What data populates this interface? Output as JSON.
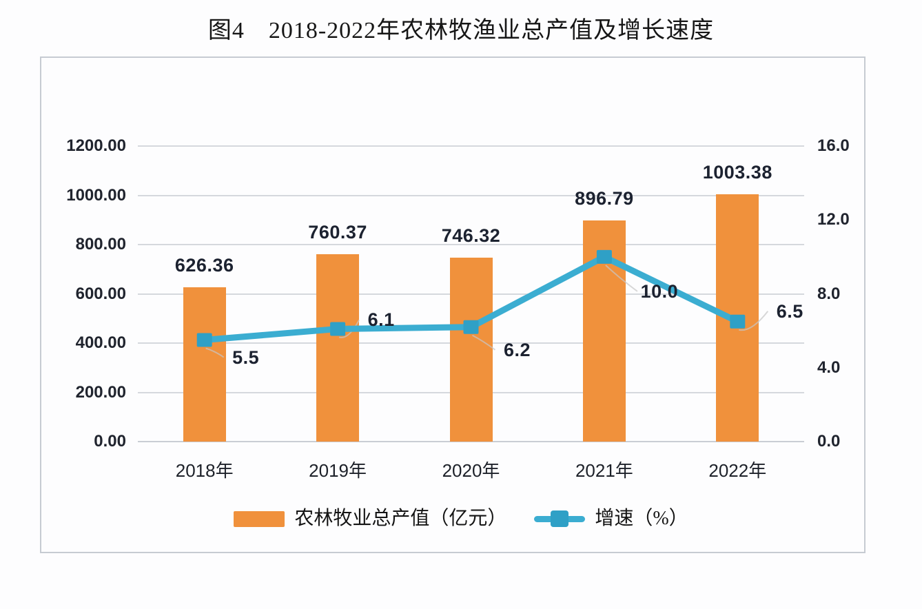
{
  "title": "图4　2018-2022年农林牧渔业总产值及增长速度",
  "chart_data": {
    "type": "bar",
    "subtype": "combo-bar-line-dual-axis",
    "categories": [
      "2018年",
      "2019年",
      "2020年",
      "2021年",
      "2022年"
    ],
    "series": [
      {
        "name": "农林牧业总产值（亿元）",
        "type": "bar",
        "axis": "left",
        "values": [
          626.36,
          760.37,
          746.32,
          896.79,
          1003.38
        ],
        "labels": [
          "626.36",
          "760.37",
          "746.32",
          "896.79",
          "1003.38"
        ],
        "color": "#f0913c"
      },
      {
        "name": "增速（%）",
        "type": "line",
        "axis": "right",
        "values": [
          5.5,
          6.1,
          6.2,
          10.0,
          6.5
        ],
        "labels": [
          "5.5",
          "6.1",
          "6.2",
          "10.0",
          "6.5"
        ],
        "color": "#3badd1",
        "marker_color": "#2fa0c6",
        "marker": "square"
      }
    ],
    "left_axis": {
      "min": 0,
      "max": 1200,
      "step": 200,
      "tick_labels": [
        "0.00",
        "200.00",
        "400.00",
        "600.00",
        "800.00",
        "1000.00",
        "1200.00"
      ]
    },
    "right_axis": {
      "min": 0,
      "max": 16,
      "step": 4,
      "tick_labels": [
        "0.0",
        "4.0",
        "8.0",
        "12.0",
        "16.0"
      ]
    },
    "grid": true,
    "legend_position": "bottom",
    "title": "图4　2018-2022年农林牧渔业总产值及增长速度"
  },
  "legend": {
    "items": [
      {
        "label": "农林牧业总产值（亿元）",
        "swatch": "bar",
        "color": "#f0913c"
      },
      {
        "label": "增速（%）",
        "swatch": "line-marker",
        "color": "#3badd1"
      }
    ]
  },
  "colors": {
    "bar": "#f0913c",
    "line": "#3badd1",
    "marker": "#2fa0c6",
    "grid": "#d5d8dd",
    "border": "#c6cbd2",
    "text": "#1c2230"
  }
}
